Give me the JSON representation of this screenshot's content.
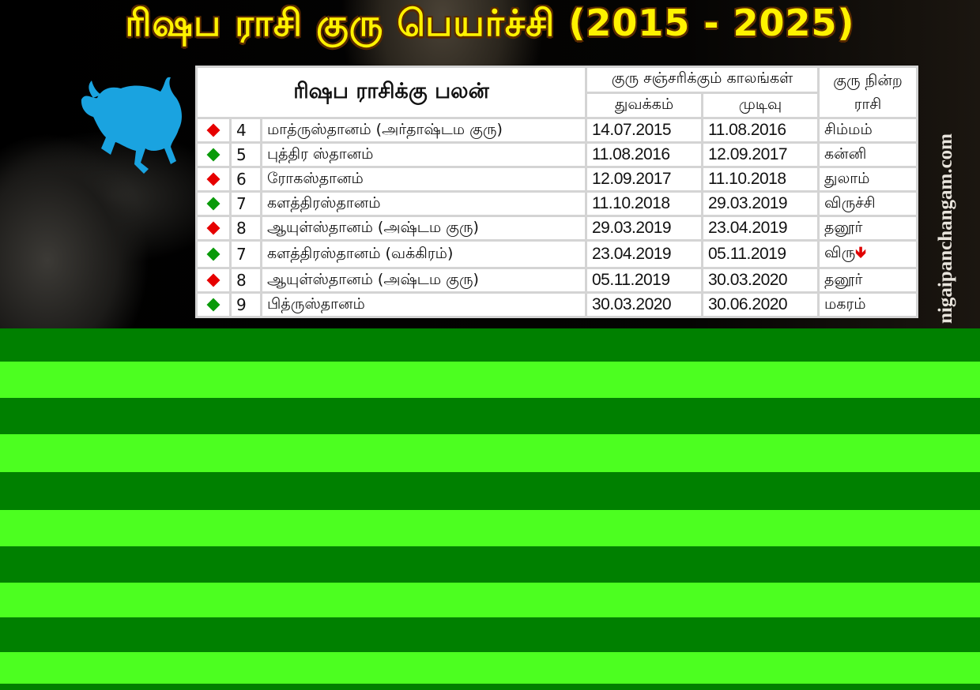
{
  "title": "ரிஷப ராசி குரு பெயர்ச்சி (2015 - 2025)",
  "watermark": "nigaipanchangam.com",
  "table": {
    "heading": "ரிஷப ராசிக்கு பலன்",
    "period_header": "குரு சஞ்சரிக்கும் காலங்கள்",
    "start_header": "துவக்கம்",
    "end_header": "முடிவு",
    "rasi_header_line1": "குரு நின்ற",
    "rasi_header_line2": "ராசி",
    "rows": [
      {
        "indicator": "red",
        "num": "4",
        "house": "மாத்ருஸ்தானம் (அர்தாஷ்டம குரு)",
        "start": "14.07.2015",
        "end": "11.08.2016",
        "rasi": "சிம்மம்",
        "retro": ""
      },
      {
        "indicator": "green",
        "num": "5",
        "house": "புத்திர ஸ்தானம்",
        "start": "11.08.2016",
        "end": "12.09.2017",
        "rasi": "கன்னி",
        "retro": ""
      },
      {
        "indicator": "red",
        "num": "6",
        "house": "ரோகஸ்தானம்",
        "start": "12.09.2017",
        "end": "11.10.2018",
        "rasi": "துலாம்",
        "retro": ""
      },
      {
        "indicator": "green",
        "num": "7",
        "house": "களத்திரஸ்தானம்",
        "start": "11.10.2018",
        "end": "29.03.2019",
        "rasi": "விருச்சி",
        "retro": ""
      },
      {
        "indicator": "red",
        "num": "8",
        "house": "ஆயுள்ஸ்தானம் (அஷ்டம குரு)",
        "start": "29.03.2019",
        "end": "23.04.2019",
        "rasi": "தனூர்",
        "retro": ""
      },
      {
        "indicator": "green",
        "num": "7",
        "house": "களத்திரஸ்தானம் (வக்கிரம்)",
        "start": "23.04.2019",
        "end": "05.11.2019",
        "rasi": "விரு",
        "retro": "🡻"
      },
      {
        "indicator": "red",
        "num": "8",
        "house": "ஆயுள்ஸ்தானம் (அஷ்டம குரு)",
        "start": "05.11.2019",
        "end": "30.03.2020",
        "rasi": "தனூர்",
        "retro": ""
      },
      {
        "indicator": "green",
        "num": "9",
        "house": "பித்ருஸ்தானம்",
        "start": "30.03.2020",
        "end": "30.06.2020",
        "rasi": "மகரம்",
        "retro": ""
      }
    ]
  },
  "colors": {
    "red": "#e60000",
    "green": "#0a9a0a",
    "title": "#fff200",
    "bull": "#1aa3e0",
    "stripe_dark": "#008000",
    "stripe_light": "#4cff20"
  }
}
